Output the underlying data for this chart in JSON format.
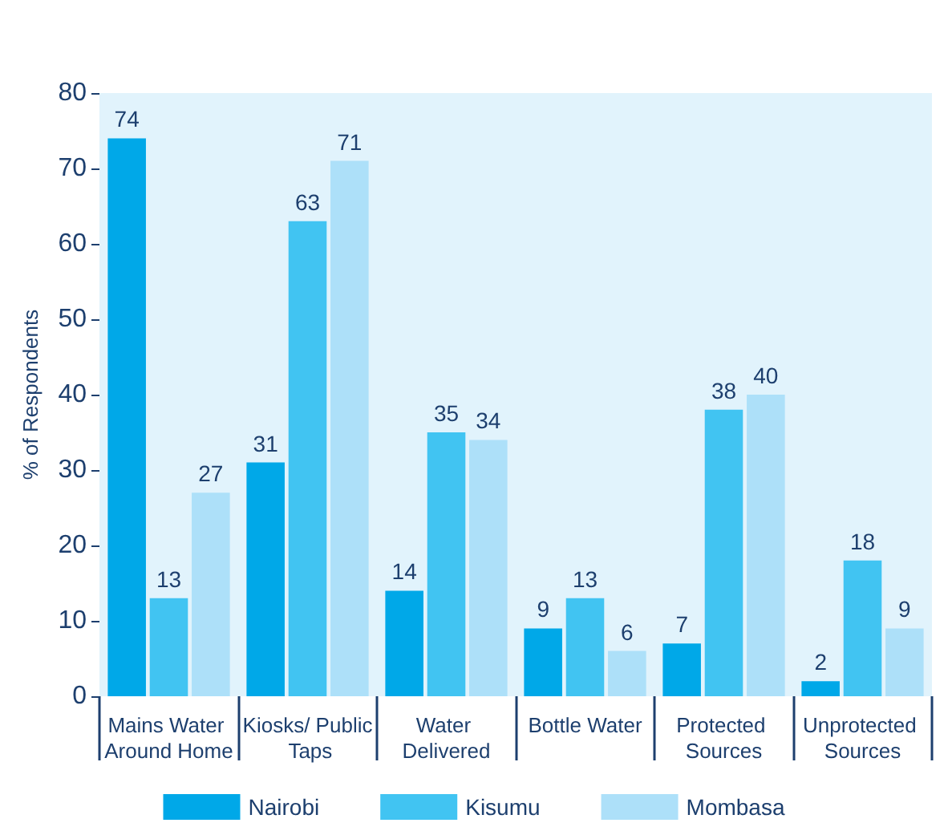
{
  "chart_data": {
    "type": "bar",
    "ylabel": "% of Respondents",
    "categories": [
      "Mains Water Around Home",
      "Kiosks/ Public Taps",
      "Water Delivered",
      "Bottle Water",
      "Protected Sources",
      "Unprotected Sources"
    ],
    "series": [
      {
        "name": "Nairobi",
        "color": "#00a8e8",
        "values": [
          74,
          31,
          14,
          9,
          7,
          2
        ]
      },
      {
        "name": "Kisumu",
        "color": "#41c4f2",
        "values": [
          13,
          63,
          35,
          13,
          38,
          18
        ]
      },
      {
        "name": "Mombasa",
        "color": "#ade0f9",
        "values": [
          27,
          71,
          34,
          6,
          40,
          9
        ]
      }
    ],
    "ylim": [
      0,
      80
    ],
    "yticks": [
      0,
      10,
      20,
      30,
      40,
      50,
      60,
      70,
      80
    ],
    "grid": false,
    "legend": "bottom",
    "data_labels": true
  }
}
